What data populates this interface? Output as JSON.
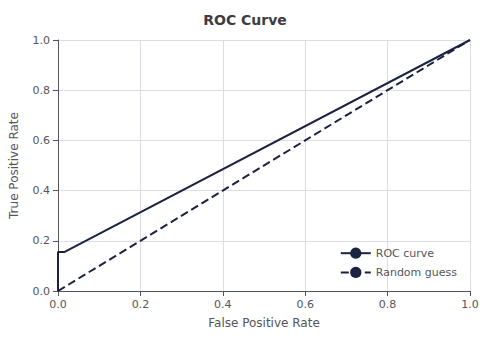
{
  "chart_data": {
    "type": "line",
    "title": "ROC Curve",
    "xlabel": "False Positive Rate",
    "ylabel": "True Positive Rate",
    "series": [
      {
        "name": "ROC curve",
        "color": "#1c2340",
        "line_style": "solid",
        "x": [
          0.0,
          0.0,
          0.015,
          1.0
        ],
        "values": [
          0.0,
          0.155,
          0.155,
          1.0
        ]
      },
      {
        "name": "Random guess",
        "color": "#1c2340",
        "line_style": "dashed",
        "x": [
          0.0,
          1.0
        ],
        "values": [
          0.0,
          1.0
        ]
      }
    ],
    "xlim": [
      0.0,
      1.0
    ],
    "ylim": [
      0.0,
      1.0
    ],
    "xticks": [
      {
        "value": 0.0,
        "label": "0.0"
      },
      0.2,
      0.4,
      0.6,
      0.8,
      {
        "value": 1.0,
        "label": "1.0"
      }
    ],
    "yticks": [
      {
        "value": 0.0,
        "label": "0.0"
      },
      0.2,
      0.4,
      0.6,
      0.8,
      {
        "value": 1.0,
        "label": "1.0"
      }
    ],
    "grid": true,
    "legend": "lower right"
  }
}
